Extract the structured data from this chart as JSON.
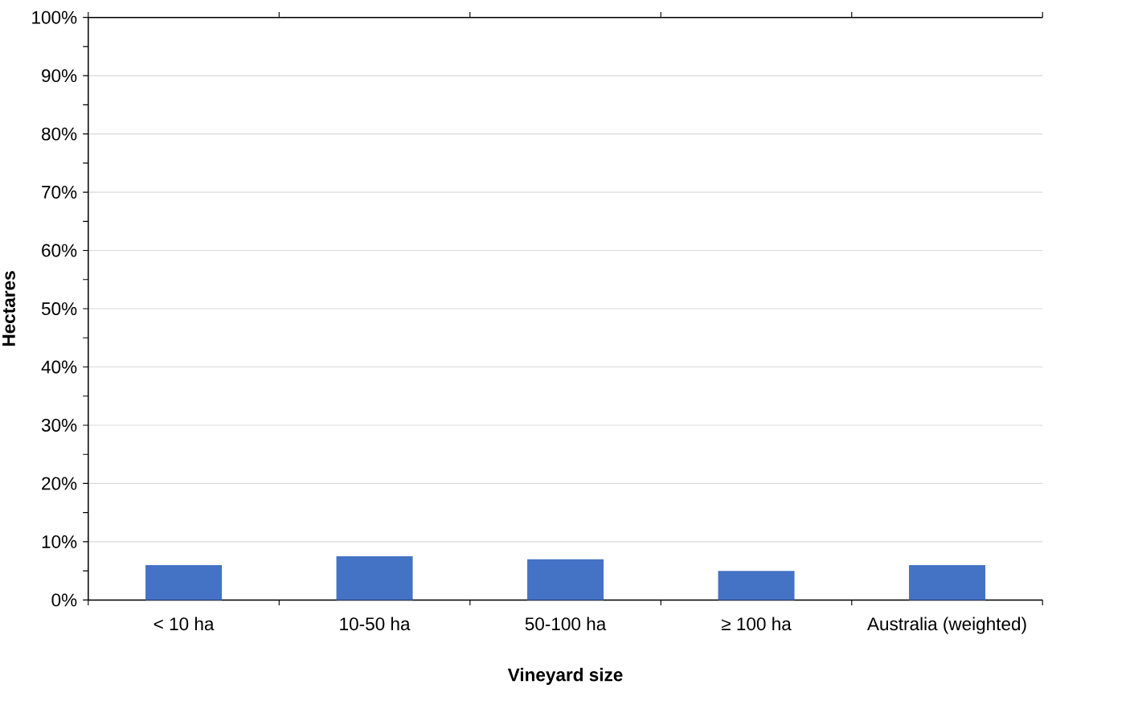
{
  "chart_data": {
    "type": "bar",
    "xlabel": "Vineyard size",
    "ylabel": "Hectares",
    "categories": [
      "< 10 ha",
      "10-50 ha",
      "50-100 ha",
      "≥ 100 ha",
      "Australia (weighted)"
    ],
    "values": [
      6,
      7.5,
      7,
      5,
      6
    ],
    "color": "#4472c4",
    "ylim": [
      0,
      100
    ],
    "yticks": [
      {
        "value": 0,
        "label": "0%"
      },
      {
        "value": 10,
        "label": "10%"
      },
      {
        "value": 20,
        "label": "20%"
      },
      {
        "value": 30,
        "label": "30%"
      },
      {
        "value": 40,
        "label": "40%"
      },
      {
        "value": 50,
        "label": "50%"
      },
      {
        "value": 60,
        "label": "60%"
      },
      {
        "value": 70,
        "label": "70%"
      },
      {
        "value": 80,
        "label": "80%"
      },
      {
        "value": 90,
        "label": "90%"
      },
      {
        "value": 100,
        "label": "100%"
      }
    ],
    "grid": "y"
  }
}
